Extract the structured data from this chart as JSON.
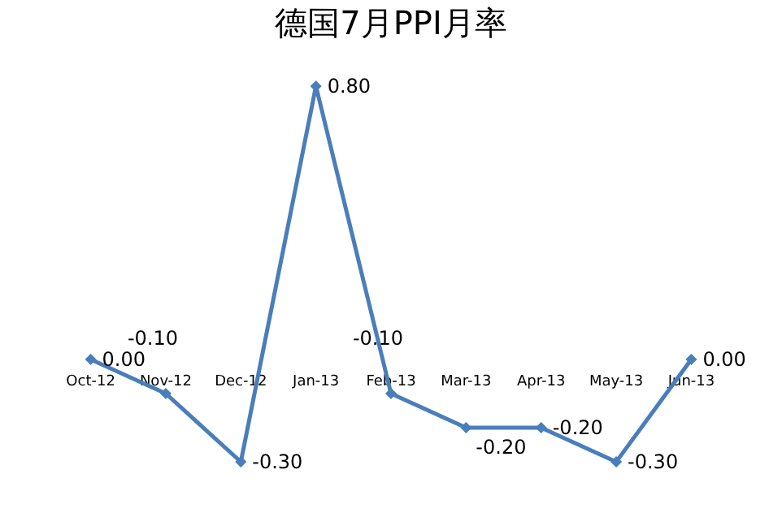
{
  "chart_data": {
    "type": "line",
    "title": "德国7月PPI月率",
    "categories": [
      "Oct-12",
      "Nov-12",
      "Dec-12",
      "Jan-13",
      "Feb-13",
      "Mar-13",
      "Apr-13",
      "May-13",
      "Jun-13"
    ],
    "series": [
      {
        "color": "#4a7ebb",
        "values": [
          0.0,
          -0.1,
          -0.3,
          0.8,
          -0.1,
          -0.2,
          -0.2,
          -0.3,
          0.0
        ],
        "value_labels": [
          "0.00",
          "-0.10",
          "-0.30",
          "0.80",
          "-0.10",
          "-0.20",
          "-0.20",
          "-0.30",
          "0.00"
        ]
      }
    ],
    "tick_labels": "x",
    "marker": "diamond",
    "line_style": "solid"
  }
}
